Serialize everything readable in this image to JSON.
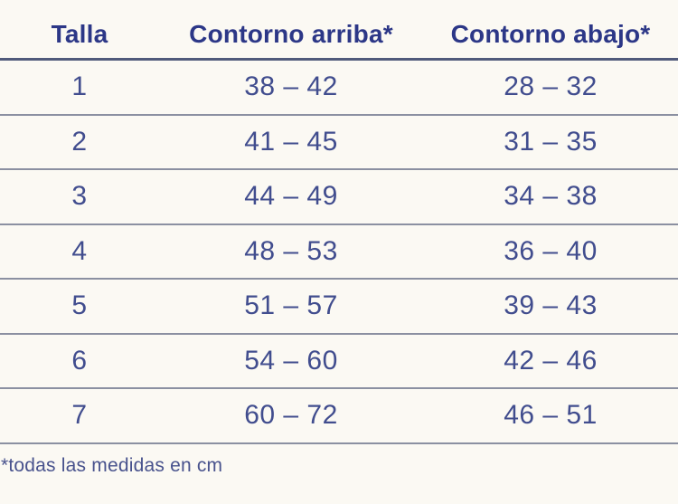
{
  "colors": {
    "background": "#fbf9f3",
    "header_text": "#2c3787",
    "body_text": "#414d8e",
    "footnote_text": "#48528d",
    "header_rule": "#505a7b",
    "row_rule": "#8b90a1"
  },
  "table": {
    "columns": [
      "Talla",
      "Contorno arriba*",
      "Contorno abajo*"
    ],
    "rows": [
      {
        "talla": "1",
        "arriba": "38 – 42",
        "abajo": "28 – 32"
      },
      {
        "talla": "2",
        "arriba": "41 – 45",
        "abajo": "31 – 35"
      },
      {
        "talla": "3",
        "arriba": "44 – 49",
        "abajo": "34 – 38"
      },
      {
        "talla": "4",
        "arriba": "48 – 53",
        "abajo": "36 – 40"
      },
      {
        "talla": "5",
        "arriba": "51 – 57",
        "abajo": "39 – 43"
      },
      {
        "talla": "6",
        "arriba": "54 – 60",
        "abajo": "42 – 46"
      },
      {
        "talla": "7",
        "arriba": "60 – 72",
        "abajo": "46 – 51"
      }
    ]
  },
  "footnote": "*todas las medidas en cm"
}
